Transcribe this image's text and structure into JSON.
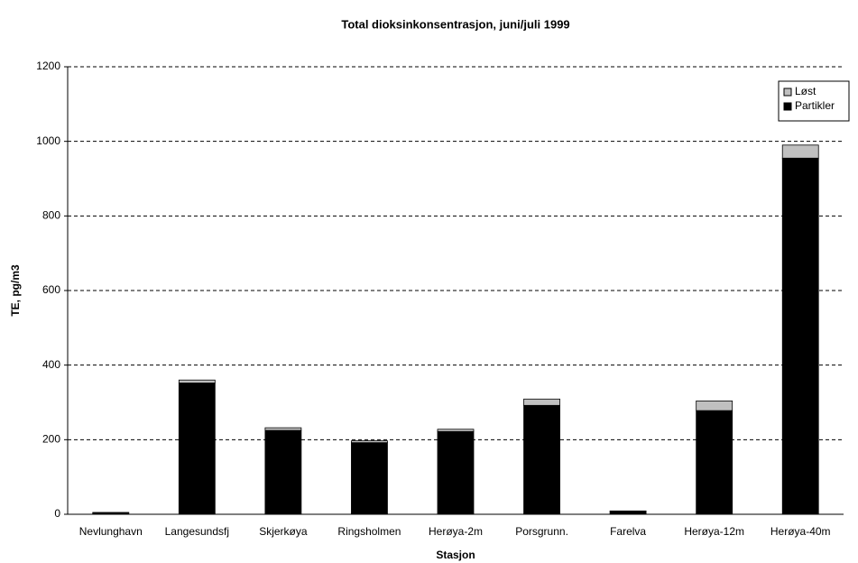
{
  "chart_data": {
    "type": "stacked_bar",
    "title": "Total dioksinkonsentrasjon, juni/juli 1999",
    "x_label": "Stasjon",
    "y_label": "TE, pg/m3",
    "categories": [
      "Nevlunghavn",
      "Langesundsfj",
      "Skjerkøya",
      "Ringsholmen",
      "Herøya-2m",
      "Porsgrunn.",
      "Farelva",
      "Herøya-12m",
      "Herøya-40m"
    ],
    "series": [
      {
        "name": "Partikler",
        "color": "#000000",
        "values": [
          3,
          352,
          225,
          192,
          222,
          292,
          7,
          278,
          955
        ]
      },
      {
        "name": "Løst",
        "color": "#c0c0c0",
        "values": [
          2,
          8,
          7,
          5,
          6,
          17,
          2,
          26,
          35
        ]
      }
    ],
    "ylim": [
      0,
      1200
    ],
    "yticks": [
      0,
      200,
      400,
      600,
      800,
      1000,
      1200
    ],
    "grid": true,
    "legend": "top-right"
  }
}
